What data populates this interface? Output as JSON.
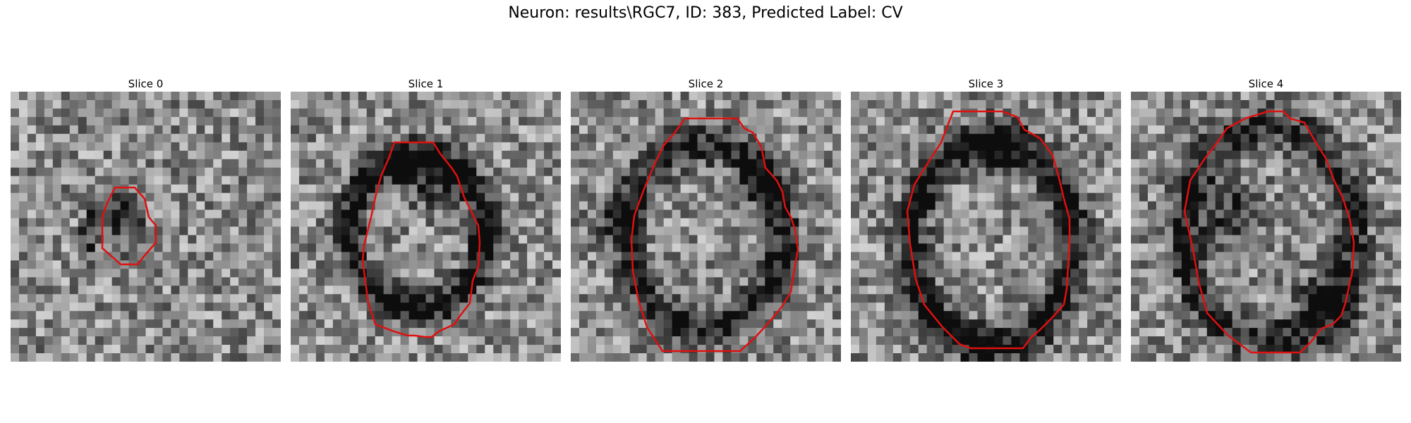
{
  "figure": {
    "title": "Neuron: results\\RGC7, ID: 383, Predicted Label: CV"
  },
  "panels": [
    {
      "title": "Slice 0"
    },
    {
      "title": "Slice 1"
    },
    {
      "title": "Slice 2"
    },
    {
      "title": "Slice 3"
    },
    {
      "title": "Slice 4"
    }
  ],
  "style": {
    "contour_color": "#e01010",
    "colormap": "grayscale"
  }
}
